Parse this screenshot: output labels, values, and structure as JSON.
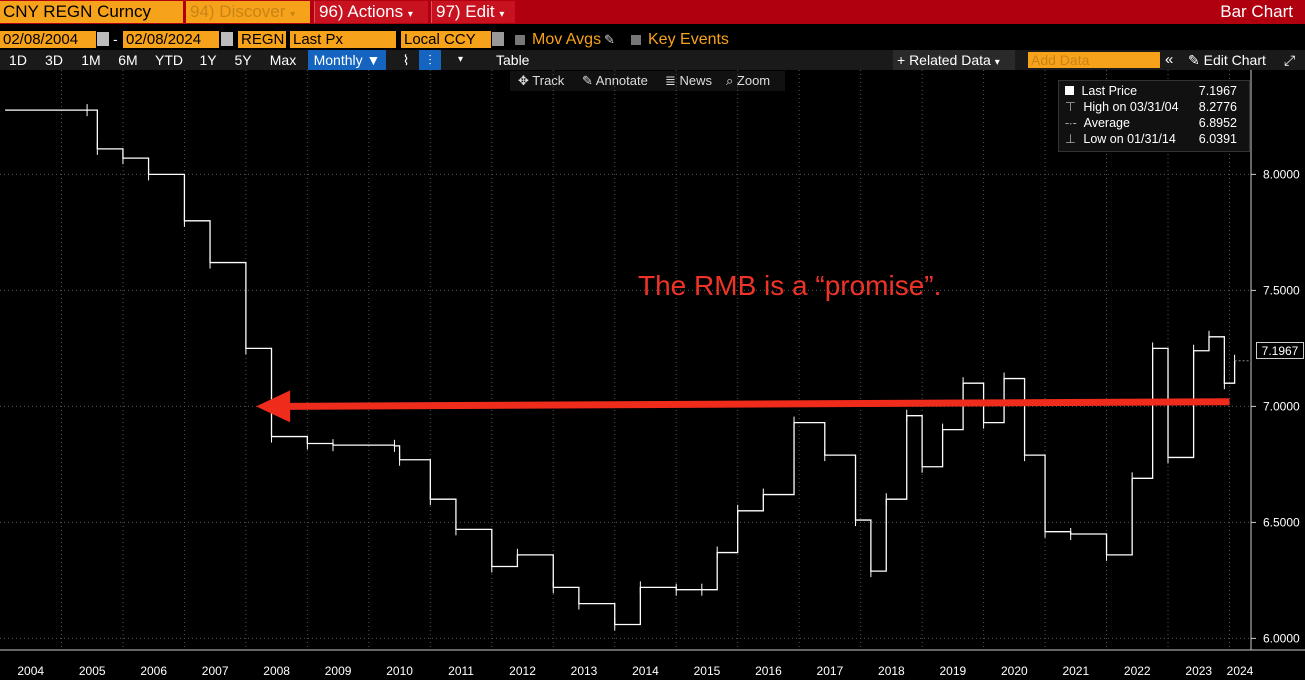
{
  "title_bar": {
    "ticker": "CNY REGN Curncy",
    "discover_label": "94) Discover",
    "actions_label": "96) Actions",
    "edit_label": "97) Edit",
    "mode_label": "Bar Chart"
  },
  "settings": {
    "start_date": "02/08/2004",
    "date_separator": "-",
    "end_date": "02/08/2024",
    "source": "REGN",
    "field": "Last Px",
    "currency": "Local CCY",
    "mov_avgs": "Mov Avgs",
    "key_events": "Key Events"
  },
  "toolbar": {
    "periods": [
      "1D",
      "3D",
      "1M",
      "6M",
      "YTD",
      "1Y",
      "5Y",
      "Max"
    ],
    "frequency": "Monthly",
    "table_label": "Table",
    "related_data": "+ Related Data",
    "add_data_placeholder": "Add Data",
    "edit_chart": "Edit Chart"
  },
  "tools": {
    "track": "Track",
    "annotate": "Annotate",
    "news": "News",
    "zoom": "Zoom"
  },
  "legend": {
    "last_label": "Last Price",
    "last_value": "7.1967",
    "high_label": "High on 03/31/04",
    "high_value": "8.2776",
    "avg_label": "Average",
    "avg_value": "6.8952",
    "low_label": "Low on 01/31/14",
    "low_value": "6.0391"
  },
  "annotation": {
    "text": "The RMB is a “promise”."
  },
  "colors": {
    "price": "#ffffff",
    "arrow": "#ef2b1c",
    "accent": "#f7a21b",
    "title_bar": "#b00010"
  },
  "chart_data": {
    "type": "line",
    "title": "",
    "xlabel": "",
    "ylabel": "",
    "ylim": [
      5.95,
      8.45
    ],
    "grid": true,
    "y_ticks": [
      "8.0000",
      "7.5000",
      "7.0000",
      "6.5000",
      "6.0000"
    ],
    "x_ticks": [
      "2004",
      "2005",
      "2006",
      "2007",
      "2008",
      "2009",
      "2010",
      "2011",
      "2012",
      "2013",
      "2014",
      "2015",
      "2016",
      "2017",
      "2018",
      "2019",
      "2020",
      "2021",
      "2022",
      "2023",
      "2024"
    ],
    "last_value_label": "7.1967",
    "series": [
      {
        "points": [
          [
            "2004-02",
            8.277
          ],
          [
            "2005-06",
            8.277
          ],
          [
            "2005-08",
            8.11
          ],
          [
            "2006-01",
            8.07
          ],
          [
            "2006-06",
            8.0
          ],
          [
            "2007-01",
            7.8
          ],
          [
            "2007-06",
            7.62
          ],
          [
            "2008-01",
            7.25
          ],
          [
            "2008-06",
            6.87
          ],
          [
            "2009-01",
            6.84
          ],
          [
            "2009-06",
            6.833
          ],
          [
            "2010-06",
            6.83
          ],
          [
            "2010-07",
            6.77
          ],
          [
            "2011-01",
            6.6
          ],
          [
            "2011-06",
            6.47
          ],
          [
            "2012-01",
            6.31
          ],
          [
            "2012-06",
            6.36
          ],
          [
            "2013-01",
            6.22
          ],
          [
            "2013-06",
            6.15
          ],
          [
            "2014-01",
            6.06
          ],
          [
            "2014-06",
            6.22
          ],
          [
            "2015-01",
            6.21
          ],
          [
            "2015-06",
            6.21
          ],
          [
            "2015-09",
            6.37
          ],
          [
            "2016-01",
            6.55
          ],
          [
            "2016-06",
            6.62
          ],
          [
            "2016-12",
            6.93
          ],
          [
            "2017-06",
            6.79
          ],
          [
            "2017-12",
            6.51
          ],
          [
            "2018-03",
            6.29
          ],
          [
            "2018-06",
            6.6
          ],
          [
            "2018-10",
            6.96
          ],
          [
            "2019-01",
            6.74
          ],
          [
            "2019-05",
            6.9
          ],
          [
            "2019-09",
            7.1
          ],
          [
            "2020-01",
            6.93
          ],
          [
            "2020-05",
            7.12
          ],
          [
            "2020-09",
            6.79
          ],
          [
            "2021-01",
            6.46
          ],
          [
            "2021-06",
            6.45
          ],
          [
            "2022-01",
            6.36
          ],
          [
            "2022-06",
            6.69
          ],
          [
            "2022-10",
            7.25
          ],
          [
            "2023-01",
            6.78
          ],
          [
            "2023-06",
            7.24
          ],
          [
            "2023-09",
            7.3
          ],
          [
            "2023-12",
            7.1
          ],
          [
            "2024-02",
            7.1967
          ]
        ]
      }
    ],
    "annotation_arrow": {
      "from": [
        "2024-01",
        7.02
      ],
      "to": [
        "2008-03",
        7.0
      ]
    }
  }
}
